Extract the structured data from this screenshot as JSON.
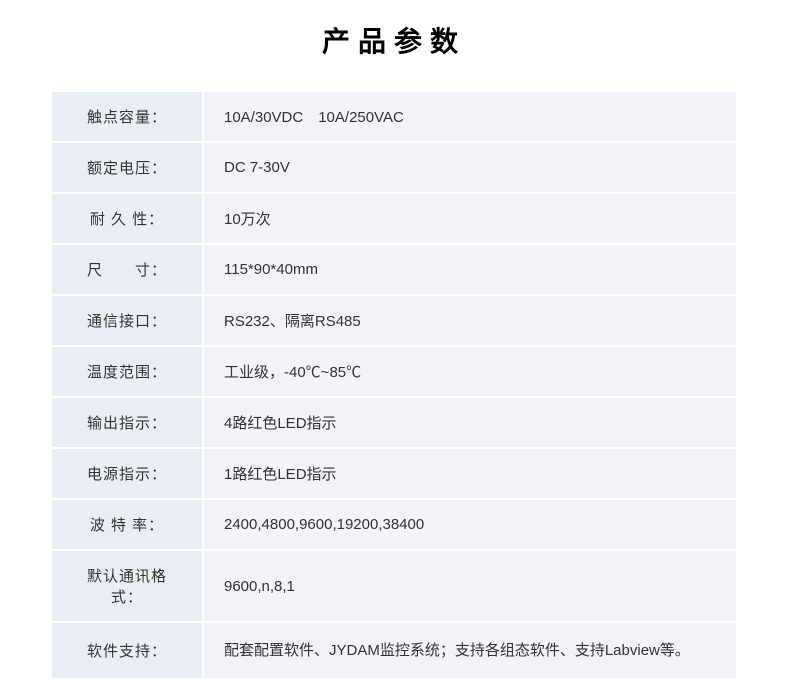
{
  "title": "产品参数",
  "rows": [
    {
      "label": "触点容量：",
      "value": "10A/30VDC　10A/250VAC"
    },
    {
      "label": "额定电压：",
      "value": "DC 7-30V"
    },
    {
      "label": "耐 久 性：",
      "value": "10万次"
    },
    {
      "label": "尺　　寸：",
      "value": "115*90*40mm"
    },
    {
      "label": "通信接口：",
      "value": "RS232、隔离RS485"
    },
    {
      "label": "温度范围：",
      "value": "工业级，-40℃~85℃"
    },
    {
      "label": "输出指示：",
      "value": "4路红色LED指示"
    },
    {
      "label": "电源指示：",
      "value": "1路红色LED指示"
    },
    {
      "label": "波 特 率：",
      "value": "2400,4800,9600,19200,38400"
    },
    {
      "label": "默认通讯格式：",
      "value": "9600,n,8,1"
    },
    {
      "label": "软件支持：",
      "value": "配套配置软件、JYDAM监控系统；支持各组态软件、支持Labview等。",
      "tall": true
    }
  ],
  "colors": {
    "label_bg": "#e9edf6",
    "value_bg": "#f1f3f9",
    "text": "#333333",
    "title": "#000000"
  }
}
